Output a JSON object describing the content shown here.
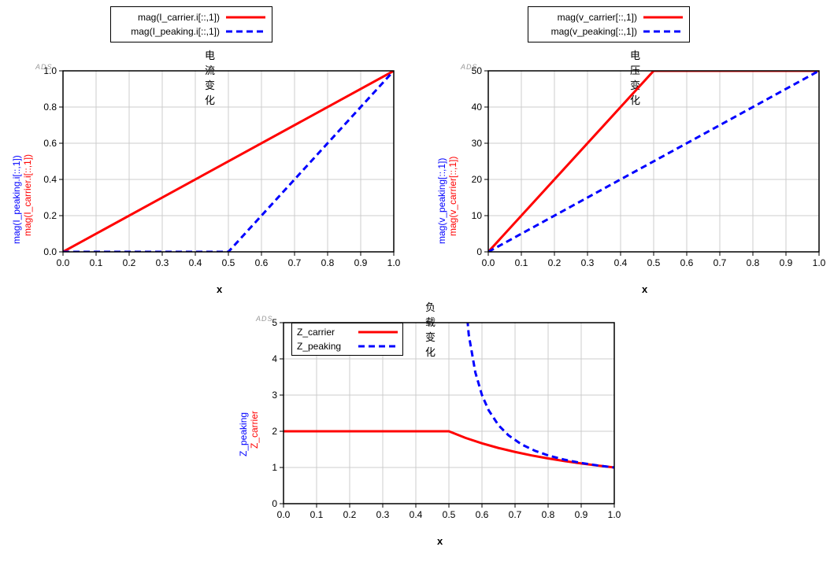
{
  "colors": {
    "carrier": "#ff0000",
    "peaking": "#0000ff",
    "grid": "#cccccc",
    "border": "#000000",
    "bg": "#ffffff",
    "ads": "#b0b0b0"
  },
  "fonts": {
    "tick_size": 12,
    "title_size": 13,
    "label_size": 12
  },
  "chart1": {
    "title": "电流变化",
    "x_caption": "x",
    "ads": "ADS",
    "legend": {
      "carrier": "mag(I_carrier.i[::,1])",
      "peaking": "mag(I_peaking.i[::,1])"
    },
    "ylabels": {
      "red": "mag(I_carrier.i[::,1])",
      "blue": "mag(I_peaking.i[::,1])"
    },
    "xlim": [
      0.0,
      1.0
    ],
    "xtick_step": 0.1,
    "ylim": [
      0.0,
      1.0
    ],
    "ytick_step": 0.2,
    "series": {
      "carrier": {
        "x": [
          0.0,
          1.0
        ],
        "y": [
          0.0,
          1.0
        ],
        "color": "#ff0000",
        "width": 3,
        "dash": "none"
      },
      "peaking": {
        "x": [
          0.0,
          0.5,
          1.0
        ],
        "y": [
          0.0,
          0.0,
          1.0
        ],
        "color": "#0000ff",
        "width": 3,
        "dash": "8,5"
      }
    }
  },
  "chart2": {
    "title": "电压变化",
    "x_caption": "x",
    "ads": "ADS",
    "legend": {
      "carrier": "mag(v_carrier[::,1])",
      "peaking": "mag(v_peaking[::,1])"
    },
    "ylabels": {
      "red": "mag(v_carrier[::,1])",
      "blue": "mag(v_peaking[::,1])"
    },
    "xlim": [
      0.0,
      1.0
    ],
    "xtick_step": 0.1,
    "ylim": [
      0,
      50
    ],
    "ytick_step": 10,
    "series": {
      "carrier": {
        "x": [
          0.0,
          0.5,
          1.0
        ],
        "y": [
          0,
          50,
          50
        ],
        "color": "#ff0000",
        "width": 3,
        "dash": "none"
      },
      "peaking": {
        "x": [
          0.0,
          1.0
        ],
        "y": [
          0,
          50
        ],
        "color": "#0000ff",
        "width": 3,
        "dash": "8,5"
      }
    }
  },
  "chart3": {
    "title": "负载变化",
    "x_caption": "x",
    "ads": "ADS",
    "legend": {
      "carrier": "Z_carrier",
      "peaking": "Z_peaking"
    },
    "ylabels": {
      "red": "Z_carrier",
      "blue": "Z_peaking"
    },
    "xlim": [
      0.0,
      1.0
    ],
    "xtick_step": 0.1,
    "ylim": [
      0,
      5
    ],
    "ytick_step": 1,
    "series": {
      "carrier": {
        "x": [
          0.0,
          0.5,
          0.55,
          0.6,
          0.65,
          0.7,
          0.75,
          0.8,
          0.85,
          0.9,
          0.95,
          1.0
        ],
        "y": [
          2.0,
          2.0,
          1.818,
          1.667,
          1.538,
          1.429,
          1.333,
          1.25,
          1.176,
          1.111,
          1.053,
          1.0
        ],
        "color": "#ff0000",
        "width": 3,
        "dash": "none"
      },
      "peaking": {
        "x": [
          0.5,
          0.52,
          0.54,
          0.56,
          0.58,
          0.6,
          0.62,
          0.65,
          0.68,
          0.72,
          0.76,
          0.8,
          0.85,
          0.9,
          0.95,
          1.0
        ],
        "y": [
          50,
          12.5,
          6.75,
          4.667,
          3.625,
          3.0,
          2.583,
          2.167,
          1.889,
          1.636,
          1.462,
          1.333,
          1.214,
          1.125,
          1.056,
          1.0
        ],
        "color": "#0000ff",
        "width": 3,
        "dash": "8,5"
      }
    }
  }
}
